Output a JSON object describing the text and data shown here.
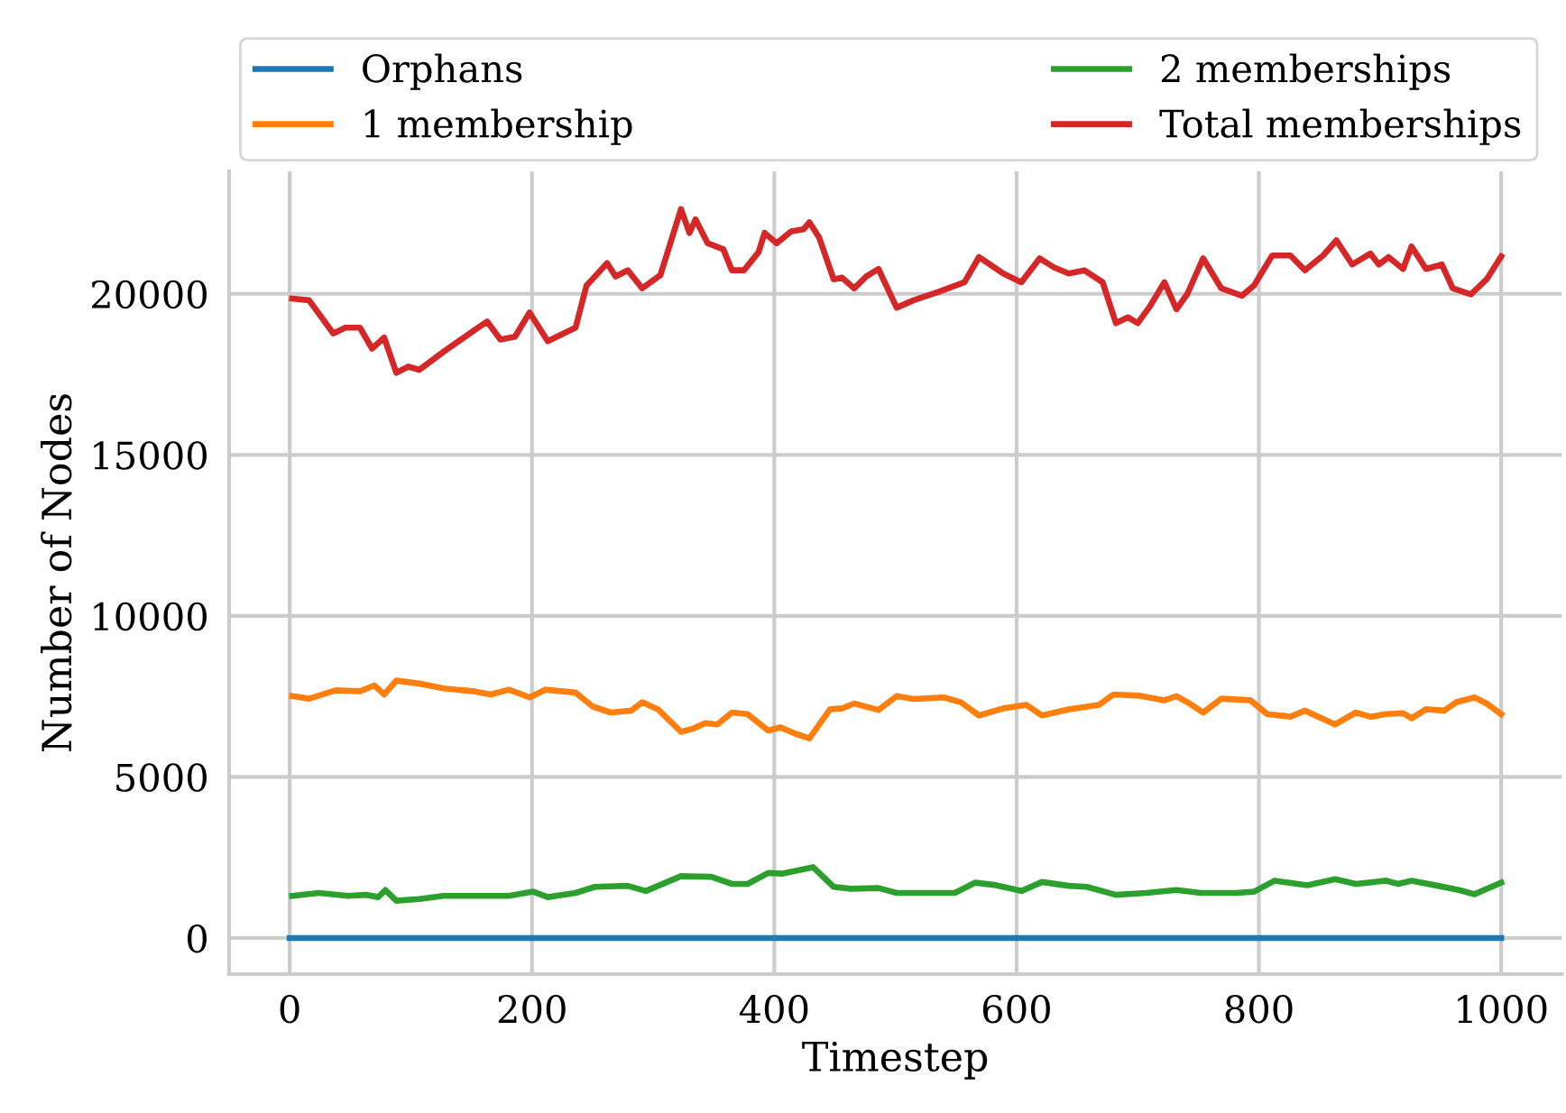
{
  "chart_data": {
    "type": "line",
    "xlabel": "Timestep",
    "ylabel": "Number of Nodes",
    "xlim": [
      -50,
      1050
    ],
    "ylim": [
      -1120,
      23800
    ],
    "xticks": [
      0,
      200,
      400,
      600,
      800,
      1000
    ],
    "yticks": [
      0,
      5000,
      10000,
      15000,
      20000
    ],
    "grid": true,
    "legend": "top",
    "marker": "none",
    "line_style": "solid",
    "series": [
      {
        "name": "Orphans",
        "color": "#1f77b4",
        "x": [
          0,
          1000
        ],
        "values": [
          0,
          0
        ]
      },
      {
        "name": "1 membership",
        "color": "#ff7f0e",
        "x": [
          2,
          16,
          38,
          58,
          70,
          78,
          88,
          107,
          127,
          152,
          166,
          181,
          198,
          211,
          236,
          250,
          265,
          282,
          291,
          304,
          323,
          333,
          343,
          353,
          365,
          378,
          395,
          405,
          417,
          429,
          446,
          456,
          466,
          486,
          501,
          515,
          540,
          554,
          569,
          589,
          608,
          621,
          643,
          668,
          680,
          702,
          722,
          732,
          741,
          754,
          769,
          793,
          807,
          826,
          838,
          863,
          880,
          892,
          905,
          919,
          926,
          938,
          953,
          963,
          978,
          988,
          1000
        ],
        "values": [
          7510,
          7430,
          7690,
          7660,
          7840,
          7560,
          7990,
          7900,
          7750,
          7660,
          7560,
          7710,
          7470,
          7710,
          7620,
          7190,
          7000,
          7060,
          7320,
          7100,
          6400,
          6500,
          6670,
          6630,
          7000,
          6950,
          6440,
          6540,
          6350,
          6200,
          7100,
          7130,
          7280,
          7080,
          7510,
          7420,
          7470,
          7320,
          6910,
          7130,
          7240,
          6910,
          7100,
          7240,
          7560,
          7520,
          7380,
          7510,
          7320,
          7000,
          7430,
          7380,
          6950,
          6870,
          7060,
          6630,
          7000,
          6870,
          6950,
          6980,
          6820,
          7100,
          7060,
          7320,
          7470,
          7280,
          6950
        ]
      },
      {
        "name": "2 memberships",
        "color": "#2ca02c",
        "x": [
          2,
          24,
          48,
          63,
          73,
          79,
          88,
          107,
          127,
          152,
          181,
          201,
          213,
          236,
          252,
          279,
          294,
          323,
          348,
          365,
          378,
          395,
          407,
          432,
          449,
          463,
          486,
          501,
          525,
          549,
          566,
          583,
          604,
          621,
          643,
          658,
          682,
          707,
          732,
          752,
          781,
          796,
          813,
          840,
          863,
          880,
          905,
          915,
          926,
          948,
          965,
          978,
          1000
        ],
        "values": [
          1310,
          1400,
          1310,
          1340,
          1270,
          1490,
          1160,
          1210,
          1310,
          1310,
          1310,
          1440,
          1270,
          1400,
          1590,
          1620,
          1460,
          1920,
          1900,
          1680,
          1680,
          2020,
          2000,
          2200,
          1590,
          1530,
          1550,
          1400,
          1400,
          1400,
          1720,
          1640,
          1460,
          1740,
          1620,
          1590,
          1340,
          1400,
          1490,
          1400,
          1400,
          1440,
          1780,
          1640,
          1830,
          1680,
          1780,
          1680,
          1780,
          1620,
          1490,
          1360,
          1720
        ]
      },
      {
        "name": "Total memberships",
        "color": "#d62728",
        "x": [
          2,
          16,
          36,
          46,
          58,
          68,
          78,
          88,
          98,
          107,
          127,
          152,
          163,
          174,
          186,
          198,
          213,
          236,
          245,
          252,
          262,
          269,
          279,
          291,
          306,
          323,
          330,
          335,
          345,
          358,
          365,
          375,
          387,
          392,
          402,
          414,
          424,
          429,
          437,
          449,
          456,
          466,
          476,
          486,
          501,
          515,
          535,
          557,
          569,
          589,
          604,
          619,
          631,
          643,
          656,
          671,
          682,
          692,
          700,
          710,
          722,
          732,
          741,
          754,
          769,
          786,
          796,
          811,
          826,
          838,
          853,
          864,
          877,
          892,
          899,
          907,
          919,
          926,
          938,
          951,
          960,
          975,
          988,
          1000
        ],
        "values": [
          19850,
          19800,
          18770,
          18950,
          18950,
          18300,
          18640,
          17550,
          17740,
          17640,
          18200,
          18860,
          19140,
          18580,
          18670,
          19420,
          18530,
          18950,
          20260,
          20540,
          20950,
          20540,
          20730,
          20170,
          20580,
          22630,
          21890,
          22310,
          21570,
          21380,
          20730,
          20730,
          21290,
          21890,
          21570,
          21940,
          22000,
          22220,
          21750,
          20450,
          20500,
          20170,
          20540,
          20770,
          19570,
          19800,
          20050,
          20360,
          21140,
          20630,
          20360,
          21100,
          20820,
          20630,
          20730,
          20360,
          19090,
          19270,
          19090,
          19610,
          20360,
          19520,
          20000,
          21100,
          20170,
          19940,
          20260,
          21190,
          21190,
          20730,
          21190,
          21660,
          20910,
          21250,
          20910,
          21140,
          20770,
          21470,
          20770,
          20910,
          20170,
          19980,
          20450,
          21160
        ]
      }
    ]
  }
}
